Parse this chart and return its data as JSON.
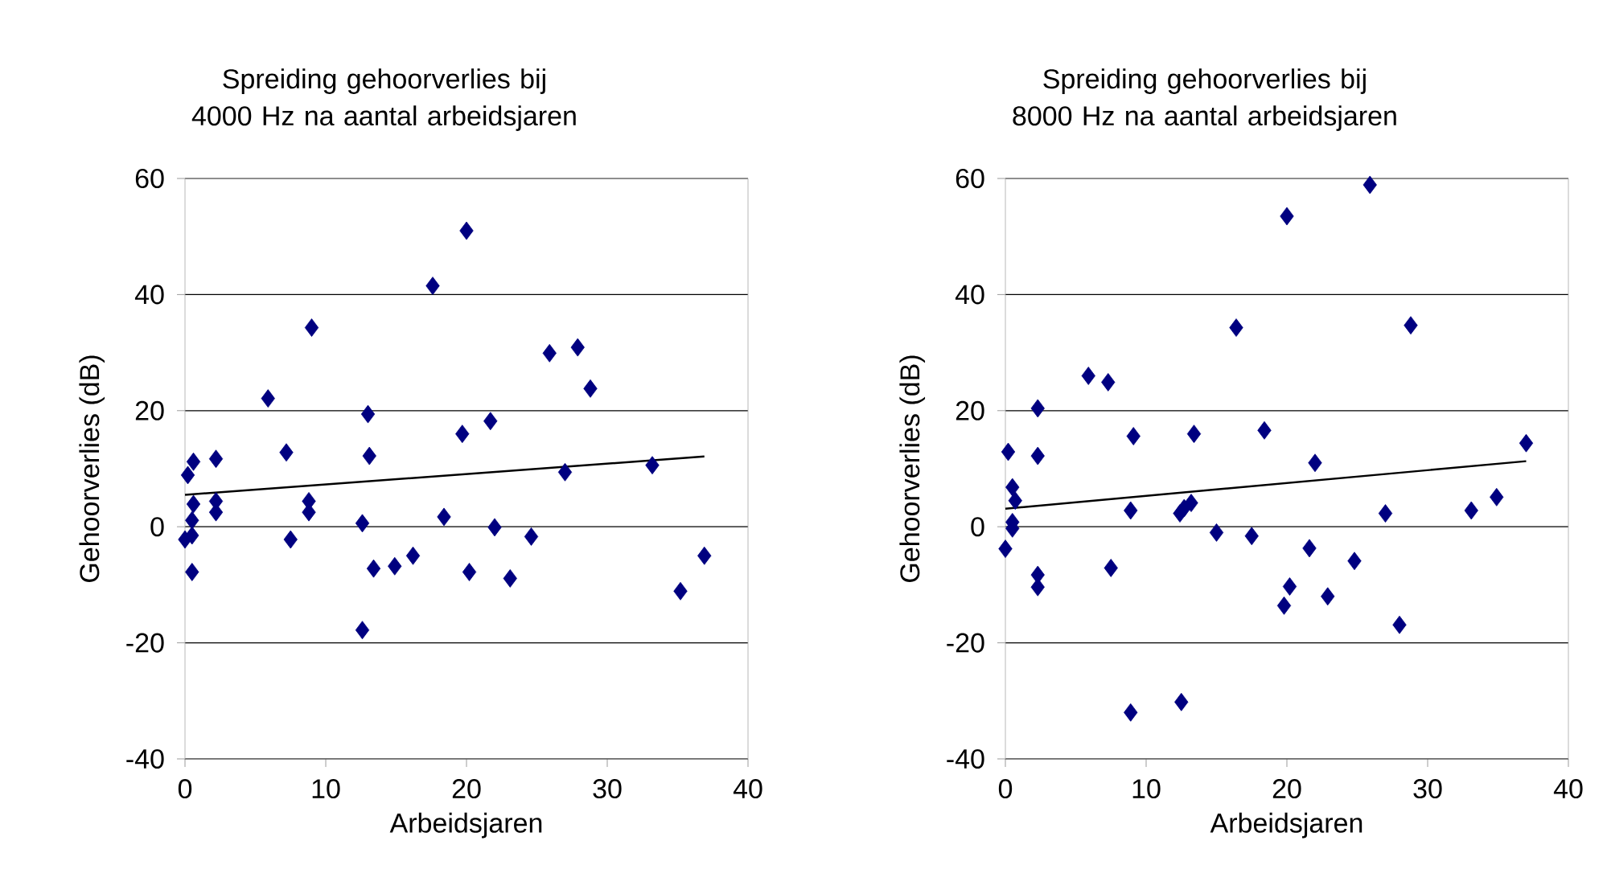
{
  "chart_data": [
    {
      "type": "scatter",
      "title": "Spreiding gehoorverlies bij 4000 Hz na aantal arbeidsjaren",
      "xlabel": "Arbeidsjaren",
      "ylabel": "Gehoorverlies (dB)",
      "xlim": [
        0,
        40
      ],
      "xticks": [
        0,
        10,
        20,
        30,
        40
      ],
      "ylim": [
        -40,
        60
      ],
      "yticks": [
        -40,
        -20,
        0,
        20,
        40,
        60
      ],
      "grid": "y",
      "series": [
        {
          "marker": "diamond",
          "color": "#000080",
          "x": [
            0.2,
            0.6,
            0.6,
            0.5,
            2.2,
            2.2,
            2.2,
            5.9,
            7.2,
            9.0,
            8.8,
            8.8,
            13.0,
            13.1,
            12.6,
            17.6,
            20.0,
            19.7,
            21.7,
            18.4,
            22.0,
            25.9,
            27.9,
            28.8,
            27.0,
            33.2,
            0,
            0.5,
            0.5,
            7.5,
            12.6,
            13.4,
            14.9,
            16.2,
            20.2,
            23.1,
            24.6,
            35.2,
            36.9
          ],
          "values": [
            8.9,
            11.2,
            3.9,
            1.1,
            11.7,
            4.4,
            2.5,
            22.1,
            12.8,
            34.3,
            4.4,
            2.5,
            19.4,
            12.2,
            0.6,
            41.5,
            51.0,
            16.0,
            18.2,
            1.7,
            -0.1,
            29.9,
            30.9,
            23.8,
            9.4,
            10.6,
            -2.2,
            -1.5,
            -7.8,
            -2.2,
            -17.8,
            -7.2,
            -6.8,
            -5.0,
            -7.8,
            -8.9,
            -1.7,
            -11.1,
            -5.0
          ]
        },
        {
          "type": "line",
          "color": "#000000",
          "line_style": "solid",
          "x": [
            0,
            36.9
          ],
          "values": [
            5.5,
            12.1
          ]
        }
      ]
    },
    {
      "type": "scatter",
      "title": "Spreiding gehoorverlies bij 8000 Hz na aantal arbeidsjaren",
      "xlabel": "Arbeidsjaren",
      "ylabel": "Gehoorverlies (dB)",
      "xlim": [
        0,
        40
      ],
      "xticks": [
        0,
        10,
        20,
        30,
        40
      ],
      "ylim": [
        -40,
        60
      ],
      "yticks": [
        -40,
        -20,
        0,
        20,
        40,
        60
      ],
      "grid": "y",
      "series": [
        {
          "marker": "diamond",
          "color": "#000080",
          "x": [
            0.2,
            0.5,
            0.7,
            0.5,
            2.3,
            2.3,
            5.9,
            7.3,
            9.1,
            8.9,
            13.4,
            12.4,
            12.7,
            13.2,
            16.4,
            18.4,
            20.0,
            22.0,
            25.9,
            28.8,
            27.0,
            33.1,
            34.9,
            37.0,
            0,
            0.5,
            2.3,
            2.3,
            7.5,
            8.9,
            12.5,
            15.0,
            17.5,
            19.8,
            20.2,
            21.6,
            22.9,
            24.8,
            28.0
          ],
          "values": [
            12.9,
            6.8,
            4.5,
            0.8,
            20.4,
            12.2,
            26.0,
            24.9,
            15.6,
            2.8,
            16.0,
            2.3,
            3.2,
            4.1,
            34.3,
            16.6,
            53.5,
            11.0,
            58.9,
            34.7,
            2.3,
            2.8,
            5.1,
            14.4,
            -3.8,
            -0.3,
            -8.3,
            -10.4,
            -7.1,
            -32.0,
            -30.2,
            -1.0,
            -1.6,
            -13.6,
            -10.3,
            -3.7,
            -12.0,
            -5.9,
            -16.9
          ]
        },
        {
          "type": "line",
          "color": "#000000",
          "line_style": "solid",
          "x": [
            0,
            37.0
          ],
          "values": [
            3.1,
            11.3
          ]
        }
      ]
    }
  ]
}
